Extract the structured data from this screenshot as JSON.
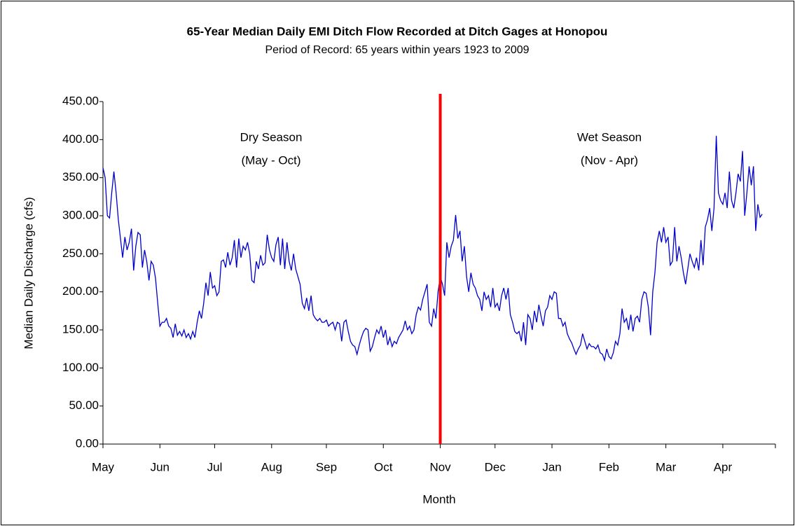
{
  "chart_data": {
    "type": "line",
    "title": "65-Year Median Daily EMI Ditch Flow Recorded at Ditch Gages at Honopou",
    "subtitle": "Period of Record: 65 years within years 1923 to 2009",
    "x_label": "Month",
    "y_label": "Median Daily Discharge (cfs)",
    "annotations": [
      "Dry Season",
      "(May - Oct)",
      "Wet Season",
      "(Nov - Apr)"
    ],
    "color": "#0000cc",
    "divider_x": 154,
    "divider_color": "#ff0000",
    "xlim": [
      0,
      307
    ],
    "xticks": [
      {
        "value": 0,
        "label": "May"
      },
      {
        "value": 26,
        "label": "Jun"
      },
      {
        "value": 51,
        "label": "Jul"
      },
      {
        "value": 77,
        "label": "Aug"
      },
      {
        "value": 102,
        "label": "Sep"
      },
      {
        "value": 128,
        "label": "Oct"
      },
      {
        "value": 154,
        "label": "Nov"
      },
      {
        "value": 179,
        "label": "Dec"
      },
      {
        "value": 205,
        "label": "Jan"
      },
      {
        "value": 231,
        "label": "Feb"
      },
      {
        "value": 257,
        "label": "Mar"
      },
      {
        "value": 283,
        "label": "Apr"
      }
    ],
    "ylim": [
      0,
      450
    ],
    "yticks": [
      {
        "value": 0,
        "label": "0.00"
      },
      {
        "value": 50,
        "label": "50.00"
      },
      {
        "value": 100,
        "label": "100.00"
      },
      {
        "value": 150,
        "label": "150.00"
      },
      {
        "value": 200,
        "label": "200.00"
      },
      {
        "value": 250,
        "label": "250.00"
      },
      {
        "value": 300,
        "label": "300.00"
      },
      {
        "value": 350,
        "label": "350.00"
      },
      {
        "value": 400,
        "label": "400.00"
      },
      {
        "value": 450,
        "label": "450.00"
      }
    ],
    "values": [
      363,
      350,
      300,
      297,
      330,
      358,
      330,
      295,
      270,
      245,
      272,
      255,
      265,
      283,
      228,
      260,
      278,
      275,
      232,
      255,
      240,
      215,
      240,
      235,
      218,
      185,
      155,
      160,
      160,
      165,
      155,
      152,
      140,
      158,
      143,
      148,
      142,
      150,
      140,
      145,
      138,
      148,
      140,
      160,
      175,
      165,
      185,
      212,
      195,
      226,
      205,
      208,
      195,
      200,
      240,
      242,
      232,
      252,
      235,
      245,
      268,
      232,
      270,
      245,
      260,
      255,
      265,
      250,
      215,
      212,
      240,
      230,
      248,
      235,
      238,
      275,
      255,
      245,
      240,
      262,
      272,
      235,
      270,
      230,
      265,
      240,
      228,
      250,
      230,
      220,
      210,
      185,
      178,
      192,
      175,
      195,
      170,
      165,
      162,
      165,
      160,
      160,
      163,
      155,
      158,
      160,
      150,
      160,
      158,
      135,
      160,
      163,
      148,
      135,
      130,
      128,
      118,
      130,
      140,
      148,
      152,
      150,
      122,
      128,
      140,
      150,
      145,
      155,
      140,
      150,
      130,
      140,
      128,
      135,
      132,
      140,
      145,
      150,
      162,
      150,
      155,
      145,
      150,
      170,
      180,
      176,
      190,
      200,
      210,
      160,
      155,
      178,
      165,
      200,
      220,
      210,
      195,
      265,
      245,
      260,
      268,
      301,
      270,
      280,
      240,
      260,
      220,
      200,
      225,
      210,
      205,
      195,
      190,
      175,
      200,
      190,
      195,
      180,
      205,
      180,
      185,
      175,
      195,
      205,
      190,
      205,
      170,
      160,
      148,
      145,
      148,
      135,
      160,
      130,
      170,
      165,
      150,
      175,
      160,
      183,
      168,
      155,
      175,
      180,
      195,
      190,
      200,
      198,
      165,
      165,
      155,
      160,
      145,
      138,
      133,
      125,
      118,
      125,
      130,
      145,
      135,
      125,
      132,
      128,
      128,
      125,
      130,
      120,
      118,
      110,
      125,
      115,
      112,
      120,
      135,
      130,
      145,
      178,
      160,
      165,
      150,
      170,
      148,
      165,
      168,
      160,
      190,
      200,
      198,
      180,
      143,
      200,
      225,
      265,
      280,
      265,
      285,
      265,
      272,
      235,
      240,
      285,
      240,
      260,
      245,
      225,
      210,
      230,
      250,
      240,
      232,
      245,
      228,
      268,
      235,
      285,
      295,
      310,
      280,
      310,
      405,
      330,
      320,
      315,
      330,
      310,
      358,
      320,
      310,
      330,
      355,
      345,
      385,
      300,
      330,
      365,
      340,
      365,
      280,
      315,
      298,
      302
    ]
  }
}
